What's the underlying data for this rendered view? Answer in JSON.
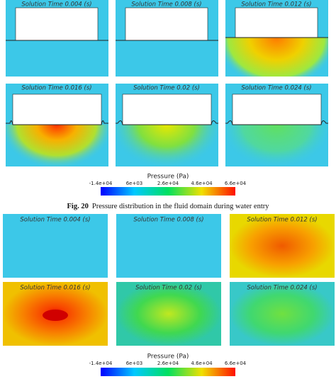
{
  "figure_top": {
    "panels": [
      {
        "title": "Solution Time 0.004 (s)"
      },
      {
        "title": "Solution Time 0.008 (s)"
      },
      {
        "title": "Solution Time 0.012 (s)"
      },
      {
        "title": "Solution Time 0.016 (s)"
      },
      {
        "title": "Solution Time 0.02 (s)"
      },
      {
        "title": "Solution Time 0.024 (s)"
      }
    ],
    "colorbar": {
      "title": "Pressure (Pa)",
      "ticks": [
        "-1.4e+04",
        "6e+03",
        "2.6e+04",
        "4.6e+04",
        "6.6e+04"
      ]
    }
  },
  "caption": {
    "label": "Fig. 20",
    "text": "Pressure distribution in the fluid domain during water entry"
  },
  "figure_bottom": {
    "panels": [
      {
        "title": "Solution Time 0.004 (s)"
      },
      {
        "title": "Solution Time 0.008 (s)"
      },
      {
        "title": "Solution Time 0.012 (s)"
      },
      {
        "title": "Solution Time 0.016 (s)"
      },
      {
        "title": "Solution Time 0.02 (s)"
      },
      {
        "title": "Solution Time 0.024 (s)"
      }
    ],
    "colorbar": {
      "title": "Pressure (Pa)",
      "ticks": [
        "-1.4e+04",
        "6e+03",
        "2.6e+04",
        "4.6e+04",
        "6.6e+04"
      ]
    }
  }
}
